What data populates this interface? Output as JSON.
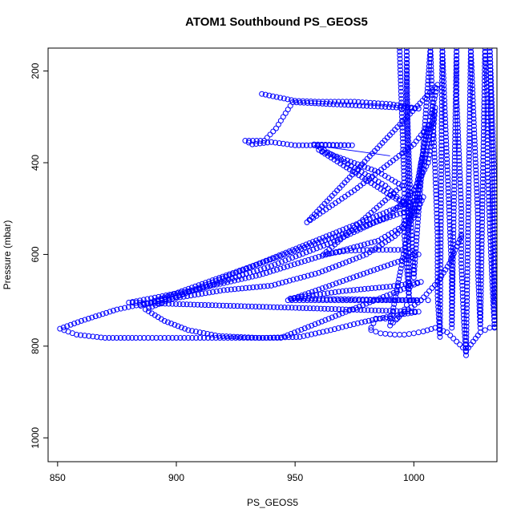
{
  "chart_data": {
    "type": "scatter",
    "title": "ATOM1 Southbound PS_GEOS5",
    "xlabel": "PS_GEOS5",
    "ylabel": "Pressure (mbar)",
    "xlim": [
      846,
      1035
    ],
    "ylim": [
      1052,
      150
    ],
    "y_inverted": true,
    "x_ticks": [
      850,
      900,
      950,
      1000
    ],
    "y_ticks": [
      200,
      400,
      600,
      800,
      1000
    ],
    "grid": false,
    "marker": "open-circle",
    "color": "#0000ff",
    "series": [
      {
        "points": [
          [
            936,
            250
          ],
          [
            950,
            265
          ],
          [
            960,
            267
          ],
          [
            975,
            267
          ],
          [
            990,
            272
          ],
          [
            1002,
            282
          ],
          [
            949,
            268
          ],
          [
            945,
            300
          ],
          [
            942,
            325
          ],
          [
            937,
            352
          ],
          [
            929,
            352
          ],
          [
            932,
            360
          ],
          [
            940,
            355
          ],
          [
            950,
            362
          ],
          [
            958,
            362
          ],
          [
            974,
            362
          ],
          [
            958,
            360
          ],
          [
            968,
            390
          ],
          [
            978,
            420
          ],
          [
            988,
            450
          ],
          [
            994,
            480
          ],
          [
            999,
            500
          ],
          [
            960,
            372
          ],
          [
            972,
            395
          ],
          [
            985,
            420
          ],
          [
            995,
            450
          ],
          [
            962,
            600
          ],
          [
            972,
            592
          ],
          [
            982,
            590
          ],
          [
            995,
            590
          ],
          [
            1002,
            600
          ],
          [
            947,
            700
          ],
          [
            960,
            700
          ],
          [
            975,
            700
          ],
          [
            990,
            700
          ],
          [
            1003,
            700
          ],
          [
            948,
            696
          ],
          [
            970,
            680
          ],
          [
            990,
            670
          ],
          [
            1003,
            660
          ],
          [
            944,
            782
          ],
          [
            930,
            782
          ],
          [
            915,
            782
          ],
          [
            905,
            782
          ],
          [
            895,
            782
          ],
          [
            883,
            782
          ],
          [
            870,
            782
          ],
          [
            858,
            775
          ],
          [
            851,
            762
          ],
          [
            860,
            745
          ],
          [
            875,
            720
          ],
          [
            888,
            706
          ],
          [
            900,
            695
          ],
          [
            920,
            678
          ],
          [
            940,
            668
          ],
          [
            960,
            640
          ],
          [
            980,
            600
          ],
          [
            992,
            560
          ],
          [
            1000,
            520
          ],
          [
            1004,
            475
          ],
          [
            887,
            720
          ],
          [
            895,
            745
          ],
          [
            905,
            765
          ],
          [
            918,
            778
          ],
          [
            935,
            782
          ],
          [
            952,
            780
          ],
          [
            965,
            765
          ],
          [
            978,
            748
          ],
          [
            990,
            735
          ],
          [
            1002,
            725
          ],
          [
            880,
            705
          ],
          [
            905,
            680
          ],
          [
            935,
            645
          ],
          [
            960,
            605
          ],
          [
            985,
            570
          ],
          [
            995,
            540
          ],
          [
            1000,
            500
          ],
          [
            885,
            712
          ],
          [
            910,
            675
          ],
          [
            940,
            625
          ],
          [
            965,
            575
          ],
          [
            990,
            515
          ],
          [
            1000,
            460
          ],
          [
            1006,
            400
          ],
          [
            1008,
            340
          ],
          [
            1009,
            280
          ],
          [
            1000,
            515
          ],
          [
            1002,
            450
          ],
          [
            1003,
            400
          ],
          [
            1005,
            350
          ],
          [
            1007,
            300
          ],
          [
            1010,
            230
          ],
          [
            955,
            530
          ],
          [
            975,
            460
          ],
          [
            990,
            400
          ],
          [
            1000,
            360
          ],
          [
            1006,
            320
          ],
          [
            990,
            755
          ],
          [
            995,
            730
          ],
          [
            1003,
            700
          ],
          [
            1010,
            660
          ],
          [
            1015,
            620
          ],
          [
            1020,
            560
          ]
        ]
      },
      {
        "points": [
          [
            994,
            150
          ],
          [
            995,
            300
          ],
          [
            996,
            450
          ],
          [
            996,
            560
          ],
          [
            997,
            620
          ],
          [
            998,
            700
          ],
          [
            997,
            150
          ],
          [
            997,
            250
          ],
          [
            998,
            400
          ],
          [
            999,
            550
          ],
          [
            1000,
            650
          ],
          [
            1007,
            150
          ],
          [
            1008,
            300
          ],
          [
            1009,
            420
          ],
          [
            1010,
            560
          ],
          [
            1010,
            690
          ],
          [
            1011,
            780
          ],
          [
            1012,
            150
          ],
          [
            1013,
            280
          ],
          [
            1014,
            400
          ],
          [
            1015,
            520
          ],
          [
            1016,
            640
          ],
          [
            1016,
            760
          ],
          [
            1018,
            150
          ],
          [
            1018,
            260
          ],
          [
            1019,
            380
          ],
          [
            1020,
            500
          ],
          [
            1020,
            620
          ],
          [
            1021,
            740
          ],
          [
            1022,
            820
          ],
          [
            1024,
            150
          ],
          [
            1025,
            280
          ],
          [
            1026,
            400
          ],
          [
            1027,
            520
          ],
          [
            1027,
            640
          ],
          [
            1028,
            760
          ],
          [
            1030,
            150
          ],
          [
            1031,
            260
          ],
          [
            1031,
            400
          ],
          [
            1032,
            540
          ],
          [
            1033,
            660
          ],
          [
            1034,
            760
          ],
          [
            1032,
            150
          ],
          [
            1033,
            300
          ],
          [
            1034,
            450
          ],
          [
            1034,
            600
          ],
          [
            1034,
            700
          ]
        ]
      },
      {
        "points": [
          [
            982,
            760
          ],
          [
            984,
            740
          ],
          [
            988,
            740
          ],
          [
            990,
            740
          ],
          [
            993,
            740
          ],
          [
            995,
            730
          ],
          [
            997,
            710
          ],
          [
            999,
            700
          ],
          [
            1003,
            700
          ],
          [
            1006,
            700
          ]
        ]
      },
      {
        "points": [
          [
            982,
            765
          ],
          [
            986,
            772
          ],
          [
            992,
            775
          ],
          [
            996,
            775
          ],
          [
            1000,
            772
          ],
          [
            1004,
            768
          ],
          [
            1009,
            760
          ],
          [
            1014,
            770
          ],
          [
            1018,
            790
          ],
          [
            1022,
            810
          ],
          [
            1025,
            790
          ],
          [
            1028,
            770
          ],
          [
            1032,
            760
          ],
          [
            1034,
            758
          ]
        ]
      }
    ],
    "lines": [
      {
        "points": [
          [
            958,
            362
          ],
          [
            990,
            385
          ]
        ]
      }
    ]
  }
}
